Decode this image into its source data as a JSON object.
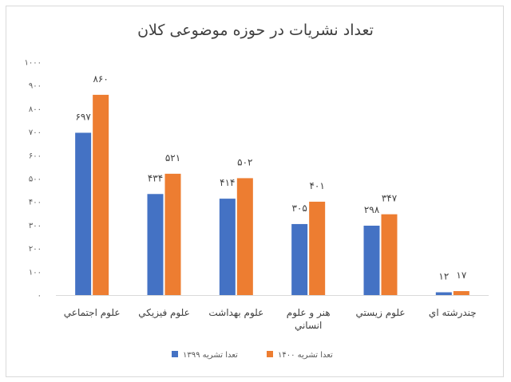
{
  "chart_data": {
    "type": "bar",
    "title": "تعداد نشریات در حوزه موضوعی کلان",
    "categories": [
      "علوم اجتماعي",
      "علوم فيزيکي",
      "علوم بهداشت",
      [
        "هنر و علوم",
        "انساني"
      ],
      "علوم زيستي",
      "چندرشته اي"
    ],
    "series": [
      {
        "name": "تعدا تشریه ۱۳۹۹",
        "color": "#4472c4",
        "values": [
          697,
          434,
          414,
          305,
          298,
          12
        ],
        "labels": [
          "۶۹۷",
          "۴۳۴",
          "۴۱۴",
          "۳۰۵",
          "۲۹۸",
          "۱۲"
        ]
      },
      {
        "name": "تعدا تشریه ۱۴۰۰",
        "color": "#ed7d31",
        "values": [
          860,
          521,
          502,
          401,
          347,
          17
        ],
        "labels": [
          "۸۶۰",
          "۵۲۱",
          "۵۰۲",
          "۴۰۱",
          "۳۴۷",
          "۱۷"
        ]
      }
    ],
    "ylim": [
      0,
      1000
    ],
    "yticks": [
      0,
      100,
      200,
      300,
      400,
      500,
      600,
      700,
      800,
      900,
      1000
    ],
    "ytick_labels": [
      "۰",
      "۱۰۰",
      "۲۰۰",
      "۳۰۰",
      "۴۰۰",
      "۵۰۰",
      "۶۰۰",
      "۷۰۰",
      "۸۰۰",
      "۹۰۰",
      "۱۰۰۰"
    ],
    "grid": false,
    "legend_position": "bottom"
  }
}
